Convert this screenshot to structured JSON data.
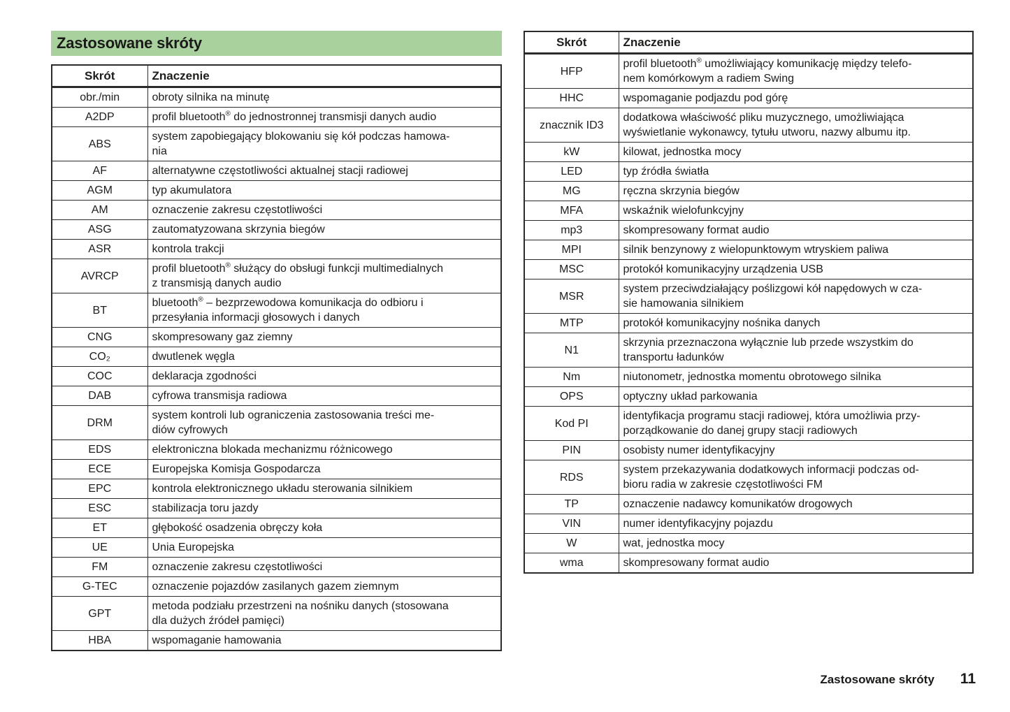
{
  "title_band": {
    "label": "Zastosowane skróty"
  },
  "columns": {
    "abbr": "Skrót",
    "meaning": "Znaczenie"
  },
  "tables": {
    "left": {
      "rows": [
        {
          "abbr": "obr./min",
          "meaning": "obroty silnika na minutę"
        },
        {
          "abbr": "A2DP",
          "meaning": "profil bluetooth® do jednostronnej transmisji danych audio"
        },
        {
          "abbr": "ABS",
          "meaning": "system zapobiegający blokowaniu się kół podczas hamowa-\nnia"
        },
        {
          "abbr": "AF",
          "meaning": "alternatywne częstotliwości aktualnej stacji radiowej"
        },
        {
          "abbr": "AGM",
          "meaning": "typ akumulatora"
        },
        {
          "abbr": "AM",
          "meaning": "oznaczenie zakresu częstotliwości"
        },
        {
          "abbr": "ASG",
          "meaning": "zautomatyzowana skrzynia biegów"
        },
        {
          "abbr": "ASR",
          "meaning": "kontrola trakcji"
        },
        {
          "abbr": "AVRCP",
          "meaning": "profil bluetooth® służący do obsługi funkcji multimedialnych\nz transmisją danych audio"
        },
        {
          "abbr": "BT",
          "meaning": "bluetooth® – bezprzewodowa komunikacja do odbioru i\nprzesyłania informacji głosowych i danych"
        },
        {
          "abbr": "CNG",
          "meaning": "skompresowany gaz ziemny"
        },
        {
          "abbr": "CO₂",
          "meaning": "dwutlenek węgla"
        },
        {
          "abbr": "COC",
          "meaning": "deklaracja zgodności"
        },
        {
          "abbr": "DAB",
          "meaning": "cyfrowa transmisja radiowa"
        },
        {
          "abbr": "DRM",
          "meaning": "system kontroli lub ograniczenia zastosowania treści me-\ndiów cyfrowych"
        },
        {
          "abbr": "EDS",
          "meaning": "elektroniczna blokada mechanizmu różnicowego"
        },
        {
          "abbr": "ECE",
          "meaning": "Europejska Komisja Gospodarcza"
        },
        {
          "abbr": "EPC",
          "meaning": "kontrola elektronicznego układu sterowania silnikiem"
        },
        {
          "abbr": "ESC",
          "meaning": "stabilizacja toru jazdy"
        },
        {
          "abbr": "ET",
          "meaning": "głębokość osadzenia obręczy koła"
        },
        {
          "abbr": "UE",
          "meaning": "Unia Europejska"
        },
        {
          "abbr": "FM",
          "meaning": "oznaczenie zakresu częstotliwości"
        },
        {
          "abbr": "G-TEC",
          "meaning": "oznaczenie pojazdów zasilanych gazem ziemnym"
        },
        {
          "abbr": "GPT",
          "meaning": "metoda podziału przestrzeni na nośniku danych (stosowana\ndla dużych źródeł pamięci)"
        },
        {
          "abbr": "HBA",
          "meaning": "wspomaganie hamowania"
        }
      ]
    },
    "right": {
      "rows": [
        {
          "abbr": "HFP",
          "meaning": "profil bluetooth® umożliwiający komunikację między telefo-\nnem komórkowym a radiem Swing"
        },
        {
          "abbr": "HHC",
          "meaning": "wspomaganie podjazdu pod górę"
        },
        {
          "abbr": "znacznik ID3",
          "meaning": "dodatkowa właściwość pliku muzycznego, umożliwiająca\nwyświetlanie wykonawcy, tytułu utworu, nazwy albumu itp."
        },
        {
          "abbr": "kW",
          "meaning": "kilowat, jednostka mocy"
        },
        {
          "abbr": "LED",
          "meaning": "typ źródła światła"
        },
        {
          "abbr": "MG",
          "meaning": "ręczna skrzynia biegów"
        },
        {
          "abbr": "MFA",
          "meaning": "wskaźnik wielofunkcyjny"
        },
        {
          "abbr": "mp3",
          "meaning": "skompresowany format audio"
        },
        {
          "abbr": "MPI",
          "meaning": "silnik benzynowy z wielopunktowym wtryskiem paliwa"
        },
        {
          "abbr": "MSC",
          "meaning": "protokół komunikacyjny urządzenia USB"
        },
        {
          "abbr": "MSR",
          "meaning": "system przeciwdziałający poślizgowi kół napędowych w cza-\nsie hamowania silnikiem"
        },
        {
          "abbr": "MTP",
          "meaning": "protokół komunikacyjny nośnika danych"
        },
        {
          "abbr": "N1",
          "meaning": "skrzynia przeznaczona wyłącznie lub przede wszystkim do\ntransportu ładunków"
        },
        {
          "abbr": "Nm",
          "meaning": "niutonometr, jednostka momentu obrotowego silnika"
        },
        {
          "abbr": "OPS",
          "meaning": "optyczny układ parkowania"
        },
        {
          "abbr": "Kod PI",
          "meaning": "identyfikacja programu stacji radiowej, która umożliwia przy-\nporządkowanie do danej grupy stacji radiowych"
        },
        {
          "abbr": "PIN",
          "meaning": "osobisty numer identyfikacyjny"
        },
        {
          "abbr": "RDS",
          "meaning": "system przekazywania dodatkowych informacji podczas od-\nbioru radia w zakresie częstotliwości FM"
        },
        {
          "abbr": "TP",
          "meaning": "oznaczenie nadawcy komunikatów drogowych"
        },
        {
          "abbr": "VIN",
          "meaning": "numer identyfikacyjny pojazdu"
        },
        {
          "abbr": "W",
          "meaning": "wat, jednostka mocy"
        },
        {
          "abbr": "wma",
          "meaning": "skompresowany format audio"
        }
      ]
    }
  },
  "footer": {
    "section_label": "Zastosowane skróty",
    "page_number": "11"
  },
  "colors": {
    "band_green": "#a8d19e",
    "text": "#1d1d1b",
    "border": "#2b2b29"
  }
}
